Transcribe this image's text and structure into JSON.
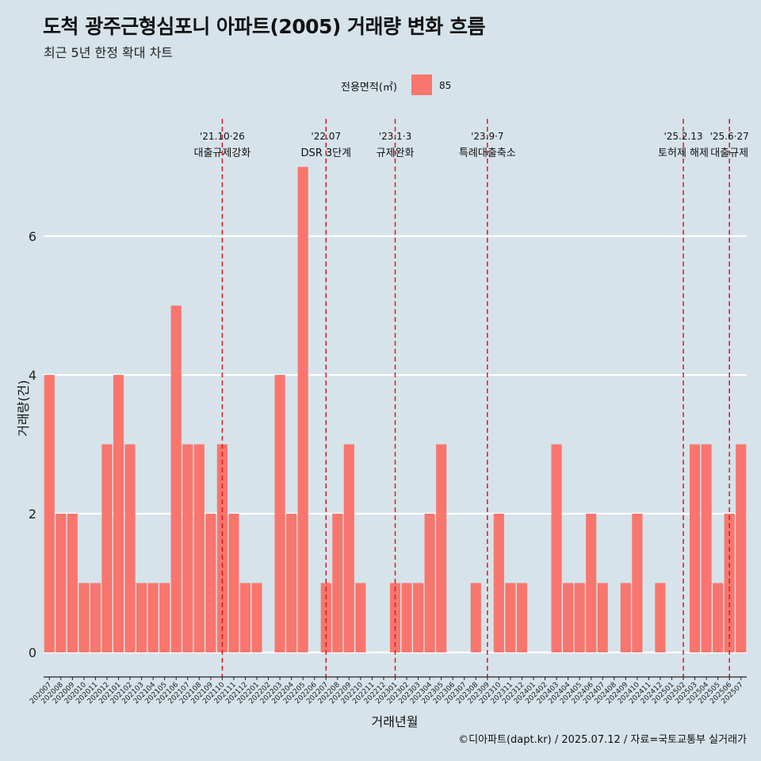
{
  "title": "도척 광주근형심포니 아파트(2005) 거래량 변화 흐름",
  "subtitle": "최근 5년 한정 확대 차트",
  "legend": {
    "title": "전용면적(㎡)",
    "label": "85",
    "color": "#f8766d"
  },
  "caption": "©디아파트(dapt.kr) / 2025.07.12 / 자료=국토교통부 실거래가",
  "chart_data": {
    "type": "bar",
    "xlabel": "거래년월",
    "ylabel": "거래량(건)",
    "ylim": [
      0,
      7
    ],
    "yticks": [
      0,
      2,
      4,
      6
    ],
    "grid": true,
    "legend_position": "top",
    "categories": [
      "202007",
      "202008",
      "202009",
      "202010",
      "202011",
      "202012",
      "202101",
      "202102",
      "202103",
      "202104",
      "202105",
      "202106",
      "202107",
      "202108",
      "202109",
      "202110",
      "202111",
      "202112",
      "202201",
      "202202",
      "202203",
      "202204",
      "202205",
      "202206",
      "202207",
      "202208",
      "202209",
      "202210",
      "202211",
      "202212",
      "202301",
      "202302",
      "202303",
      "202304",
      "202305",
      "202306",
      "202307",
      "202308",
      "202309",
      "202310",
      "202311",
      "202312",
      "202401",
      "202402",
      "202403",
      "202404",
      "202405",
      "202406",
      "202407",
      "202408",
      "202409",
      "202410",
      "202411",
      "202412",
      "202501",
      "202502",
      "202503",
      "202504",
      "202505",
      "202506",
      "202507"
    ],
    "series": [
      {
        "name": "85",
        "color": "#f8766d",
        "values": [
          4,
          2,
          2,
          1,
          1,
          3,
          4,
          3,
          1,
          1,
          1,
          5,
          3,
          3,
          2,
          3,
          2,
          1,
          1,
          0,
          4,
          2,
          7,
          0,
          1,
          2,
          3,
          1,
          0,
          0,
          1,
          1,
          1,
          2,
          3,
          0,
          0,
          1,
          0,
          2,
          1,
          1,
          0,
          0,
          3,
          1,
          1,
          2,
          1,
          0,
          1,
          2,
          0,
          1,
          0,
          0,
          3,
          3,
          1,
          2,
          3
        ]
      }
    ],
    "annotations": [
      {
        "at": "202110",
        "date": "'21.10·26",
        "label": "대출규제강화"
      },
      {
        "at": "202207",
        "date": "'22.07",
        "label": "DSR 3단계"
      },
      {
        "at": "202301",
        "date": "'23.1·3",
        "label": "규제완화"
      },
      {
        "at": "202309",
        "date": "'23.9·7",
        "label": "특례대출축소"
      },
      {
        "at": "202502",
        "date": "'25.2.13",
        "label": "토허제 해제"
      },
      {
        "at": "202506",
        "date": "'25.6·27",
        "label": "대출규제"
      }
    ]
  }
}
